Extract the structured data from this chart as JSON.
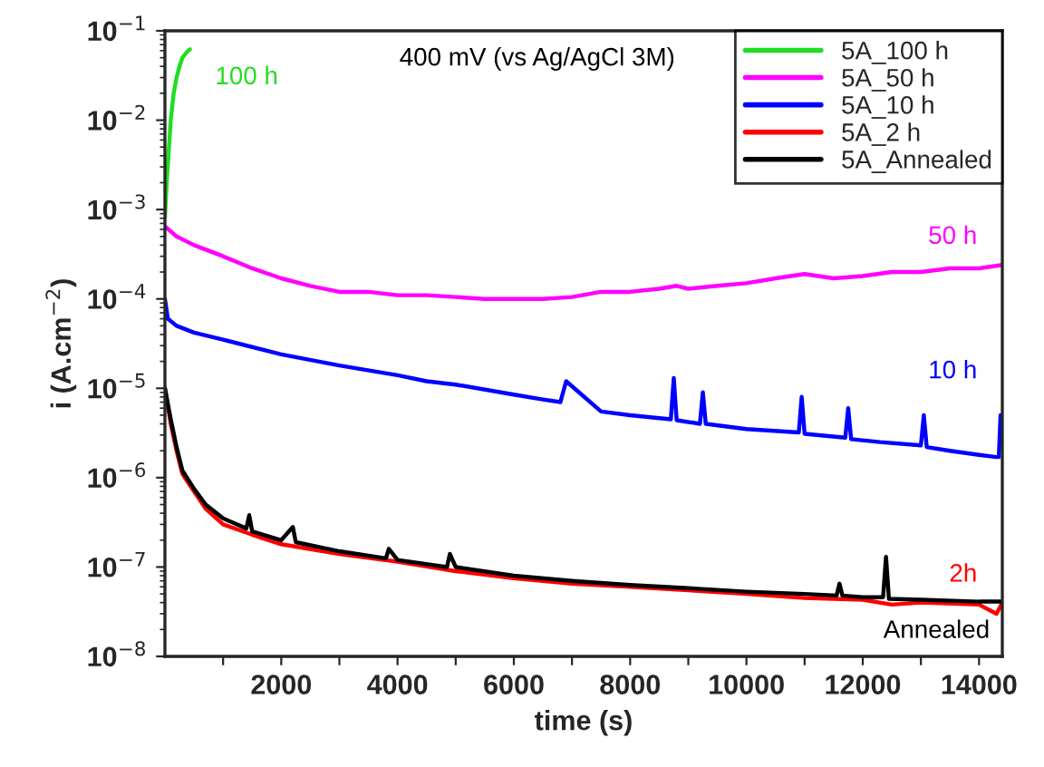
{
  "chart_data": {
    "type": "line",
    "xlabel": "time (s)",
    "ylabel": "i (A.cm$^{−2}$)",
    "log": "y",
    "xlim": [
      0,
      14400
    ],
    "ylim": [
      1e-08,
      0.1
    ],
    "xticks": [
      {
        "value": 1000,
        "label": null
      },
      2000,
      {
        "value": 3000,
        "label": null
      },
      4000,
      {
        "value": 5000,
        "label": null
      },
      6000,
      {
        "value": 7000,
        "label": null
      },
      8000,
      {
        "value": 9000,
        "label": null
      },
      10000,
      {
        "value": 11000,
        "label": null
      },
      12000,
      {
        "value": 13000,
        "label": null
      },
      14000
    ],
    "yticks": [
      {
        "value": 1e-08,
        "label": "10$^{−8}$"
      },
      {
        "value": 1e-07,
        "label": "10$^{−7}$"
      },
      {
        "value": 1e-06,
        "label": "10$^{−6}$"
      },
      {
        "value": 1e-05,
        "label": "10$^{−5}$"
      },
      {
        "value": 0.0001,
        "label": "10$^{−4}$"
      },
      {
        "value": 0.001,
        "label": "10$^{−3}$"
      },
      {
        "value": 0.01,
        "label": "10$^{−2}$"
      },
      {
        "value": 0.1,
        "label": "10$^{−1}$"
      }
    ],
    "legend": "top right",
    "grid": false,
    "series": [
      {
        "name": "5A_100 h",
        "color": "#22dd22",
        "x": [
          0,
          30,
          60,
          100,
          150,
          200,
          250,
          300,
          350,
          400,
          430
        ],
        "values": [
          0.0008,
          0.002,
          0.004,
          0.01,
          0.02,
          0.03,
          0.04,
          0.05,
          0.055,
          0.06,
          0.062
        ]
      },
      {
        "name": "5A_50 h",
        "color": "#ff00ff",
        "x": [
          0,
          200,
          500,
          1000,
          1500,
          2000,
          2500,
          3000,
          3500,
          4000,
          4500,
          5000,
          5500,
          6000,
          6500,
          7000,
          7500,
          8000,
          8500,
          8800,
          9000,
          9500,
          10000,
          10500,
          11000,
          11500,
          12000,
          12500,
          13000,
          13500,
          14000,
          14400
        ],
        "values": [
          0.00065,
          0.0005,
          0.0004,
          0.0003,
          0.00022,
          0.00017,
          0.00014,
          0.00012,
          0.00012,
          0.00011,
          0.00011,
          0.000105,
          0.0001,
          0.0001,
          0.0001,
          0.000105,
          0.00012,
          0.00012,
          0.00013,
          0.00014,
          0.00013,
          0.00014,
          0.00015,
          0.00017,
          0.00019,
          0.00017,
          0.00018,
          0.0002,
          0.0002,
          0.00022,
          0.00022,
          0.00024
        ]
      },
      {
        "name": "5A_10 h",
        "color": "#0000ff",
        "x": [
          0,
          50,
          200,
          500,
          1000,
          2000,
          3000,
          4000,
          4500,
          5000,
          6000,
          6500,
          6800,
          6900,
          7500,
          8000,
          8700,
          8750,
          8800,
          9200,
          9250,
          9300,
          10000,
          10900,
          10950,
          11000,
          11700,
          11750,
          11800,
          12300,
          13000,
          13050,
          13100,
          13500,
          14000,
          14300,
          14340,
          14370
        ],
        "values": [
          0.0001,
          6e-05,
          5e-05,
          4.2e-05,
          3.5e-05,
          2.4e-05,
          1.8e-05,
          1.4e-05,
          1.2e-05,
          1.1e-05,
          8.5e-06,
          7.5e-06,
          7e-06,
          1.2e-05,
          5.5e-06,
          5e-06,
          4.5e-06,
          1.3e-05,
          4.4e-06,
          4e-06,
          9e-06,
          4e-06,
          3.5e-06,
          3.2e-06,
          8e-06,
          3.1e-06,
          2.8e-06,
          6e-06,
          2.7e-06,
          2.5e-06,
          2.3e-06,
          5e-06,
          2.2e-06,
          2e-06,
          1.8e-06,
          1.7e-06,
          1.7e-06,
          5e-06
        ]
      },
      {
        "name": "5A_2 h",
        "color": "#ff0000",
        "x": [
          0,
          100,
          200,
          300,
          500,
          700,
          1000,
          1500,
          2000,
          3000,
          4000,
          5000,
          6000,
          7000,
          8000,
          9000,
          10000,
          11000,
          12000,
          12500,
          13000,
          14000,
          14300,
          14400
        ],
        "values": [
          1e-05,
          4e-06,
          2e-06,
          1.1e-06,
          7e-07,
          4.5e-07,
          3e-07,
          2.3e-07,
          1.8e-07,
          1.4e-07,
          1.15e-07,
          9e-08,
          7.5e-08,
          6.5e-08,
          6e-08,
          5.5e-08,
          5e-08,
          4.5e-08,
          4.3e-08,
          3.8e-08,
          4e-08,
          3.8e-08,
          3e-08,
          4e-08
        ]
      },
      {
        "name": "5A_Annealed",
        "color": "#000000",
        "x": [
          0,
          100,
          200,
          300,
          500,
          700,
          1000,
          1400,
          1450,
          1500,
          2000,
          2200,
          2250,
          3000,
          3800,
          3850,
          4000,
          4850,
          4900,
          5000,
          6000,
          7000,
          8000,
          9000,
          10000,
          11000,
          11550,
          11600,
          11650,
          12000,
          12350,
          12400,
          12450,
          13000,
          14000,
          14400
        ],
        "values": [
          1e-05,
          4.5e-06,
          2.2e-06,
          1.2e-06,
          7.5e-07,
          5e-07,
          3.5e-07,
          2.7e-07,
          3.8e-07,
          2.5e-07,
          2e-07,
          2.8e-07,
          1.9e-07,
          1.5e-07,
          1.25e-07,
          1.6e-07,
          1.2e-07,
          1e-07,
          1.4e-07,
          1e-07,
          8e-08,
          7e-08,
          6.3e-08,
          5.8e-08,
          5.3e-08,
          5e-08,
          4.8e-08,
          6.5e-08,
          4.8e-08,
          4.6e-08,
          4.6e-08,
          1.3e-07,
          4.4e-08,
          4.3e-08,
          4.1e-08,
          4.1e-08
        ]
      }
    ],
    "annotations": [
      "400 mV (vs Ag/AgCl 3M)",
      "100 h",
      "50 h",
      "10 h",
      "2h",
      "Annealed"
    ]
  }
}
